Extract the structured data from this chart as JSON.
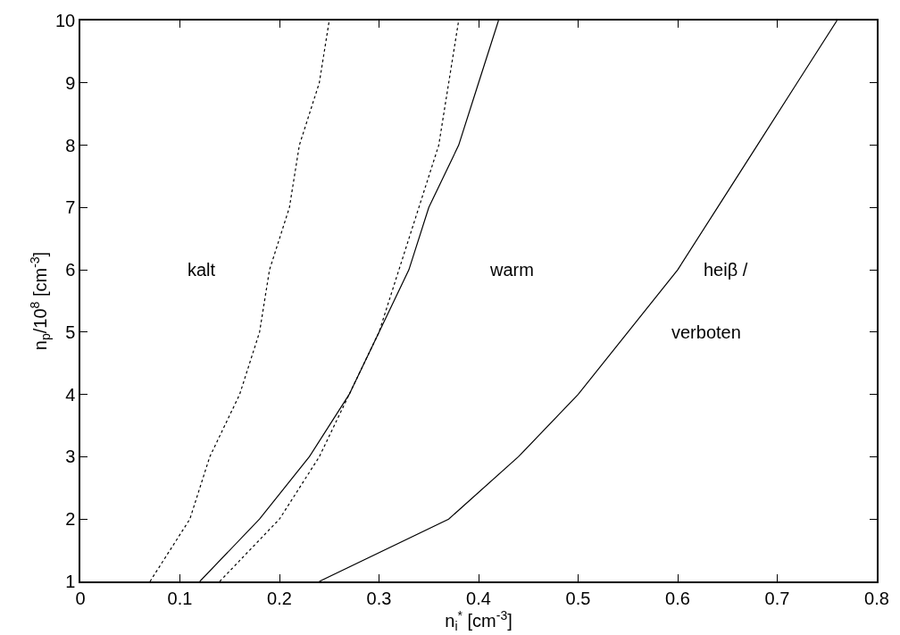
{
  "chart_data": {
    "type": "line",
    "xlabel": "n$_{i}$$^{*}$ [cm$^{-3}$]",
    "ylabel": "n$_{p}$/10$^{8}$ [cm$^{-3}$]",
    "series": [
      {
        "color": "#000000",
        "line_style": "dotted",
        "values": [
          1,
          2,
          3,
          4,
          5,
          6,
          7,
          8,
          9,
          10
        ],
        "x": [
          0.07,
          0.11,
          0.13,
          0.16,
          0.18,
          0.19,
          0.21,
          0.22,
          0.24,
          0.25
        ]
      },
      {
        "color": "#000000",
        "line_style": "solid",
        "values": [
          1,
          2,
          3,
          4,
          5,
          6,
          7,
          8,
          9,
          10
        ],
        "x": [
          0.12,
          0.18,
          0.23,
          0.27,
          0.3,
          0.33,
          0.35,
          0.38,
          0.4,
          0.42
        ]
      },
      {
        "color": "#000000",
        "line_style": "dotted",
        "values": [
          1,
          2,
          3,
          4,
          5,
          6,
          7,
          8,
          9,
          10
        ],
        "x": [
          0.14,
          0.2,
          0.24,
          0.27,
          0.3,
          0.32,
          0.34,
          0.36,
          0.37,
          0.38
        ]
      },
      {
        "color": "#000000",
        "line_style": "solid",
        "values": [
          1,
          2,
          3,
          4,
          5,
          6,
          7,
          8,
          9,
          10
        ],
        "x": [
          0.24,
          0.37,
          0.44,
          0.5,
          0.55,
          0.6,
          0.64,
          0.68,
          0.72,
          0.76
        ]
      }
    ],
    "xlim": [
      0,
      0.8
    ],
    "xticks": [
      0,
      0.1,
      0.2,
      0.3,
      0.4,
      0.5,
      0.6,
      0.7,
      0.8
    ],
    "ylim": [
      1,
      10
    ],
    "yticks": [
      1,
      2,
      3,
      4,
      5,
      6,
      7,
      8,
      9,
      10
    ],
    "annotations": [
      "kalt",
      "warm",
      "heiβ /",
      "verboten"
    ]
  }
}
